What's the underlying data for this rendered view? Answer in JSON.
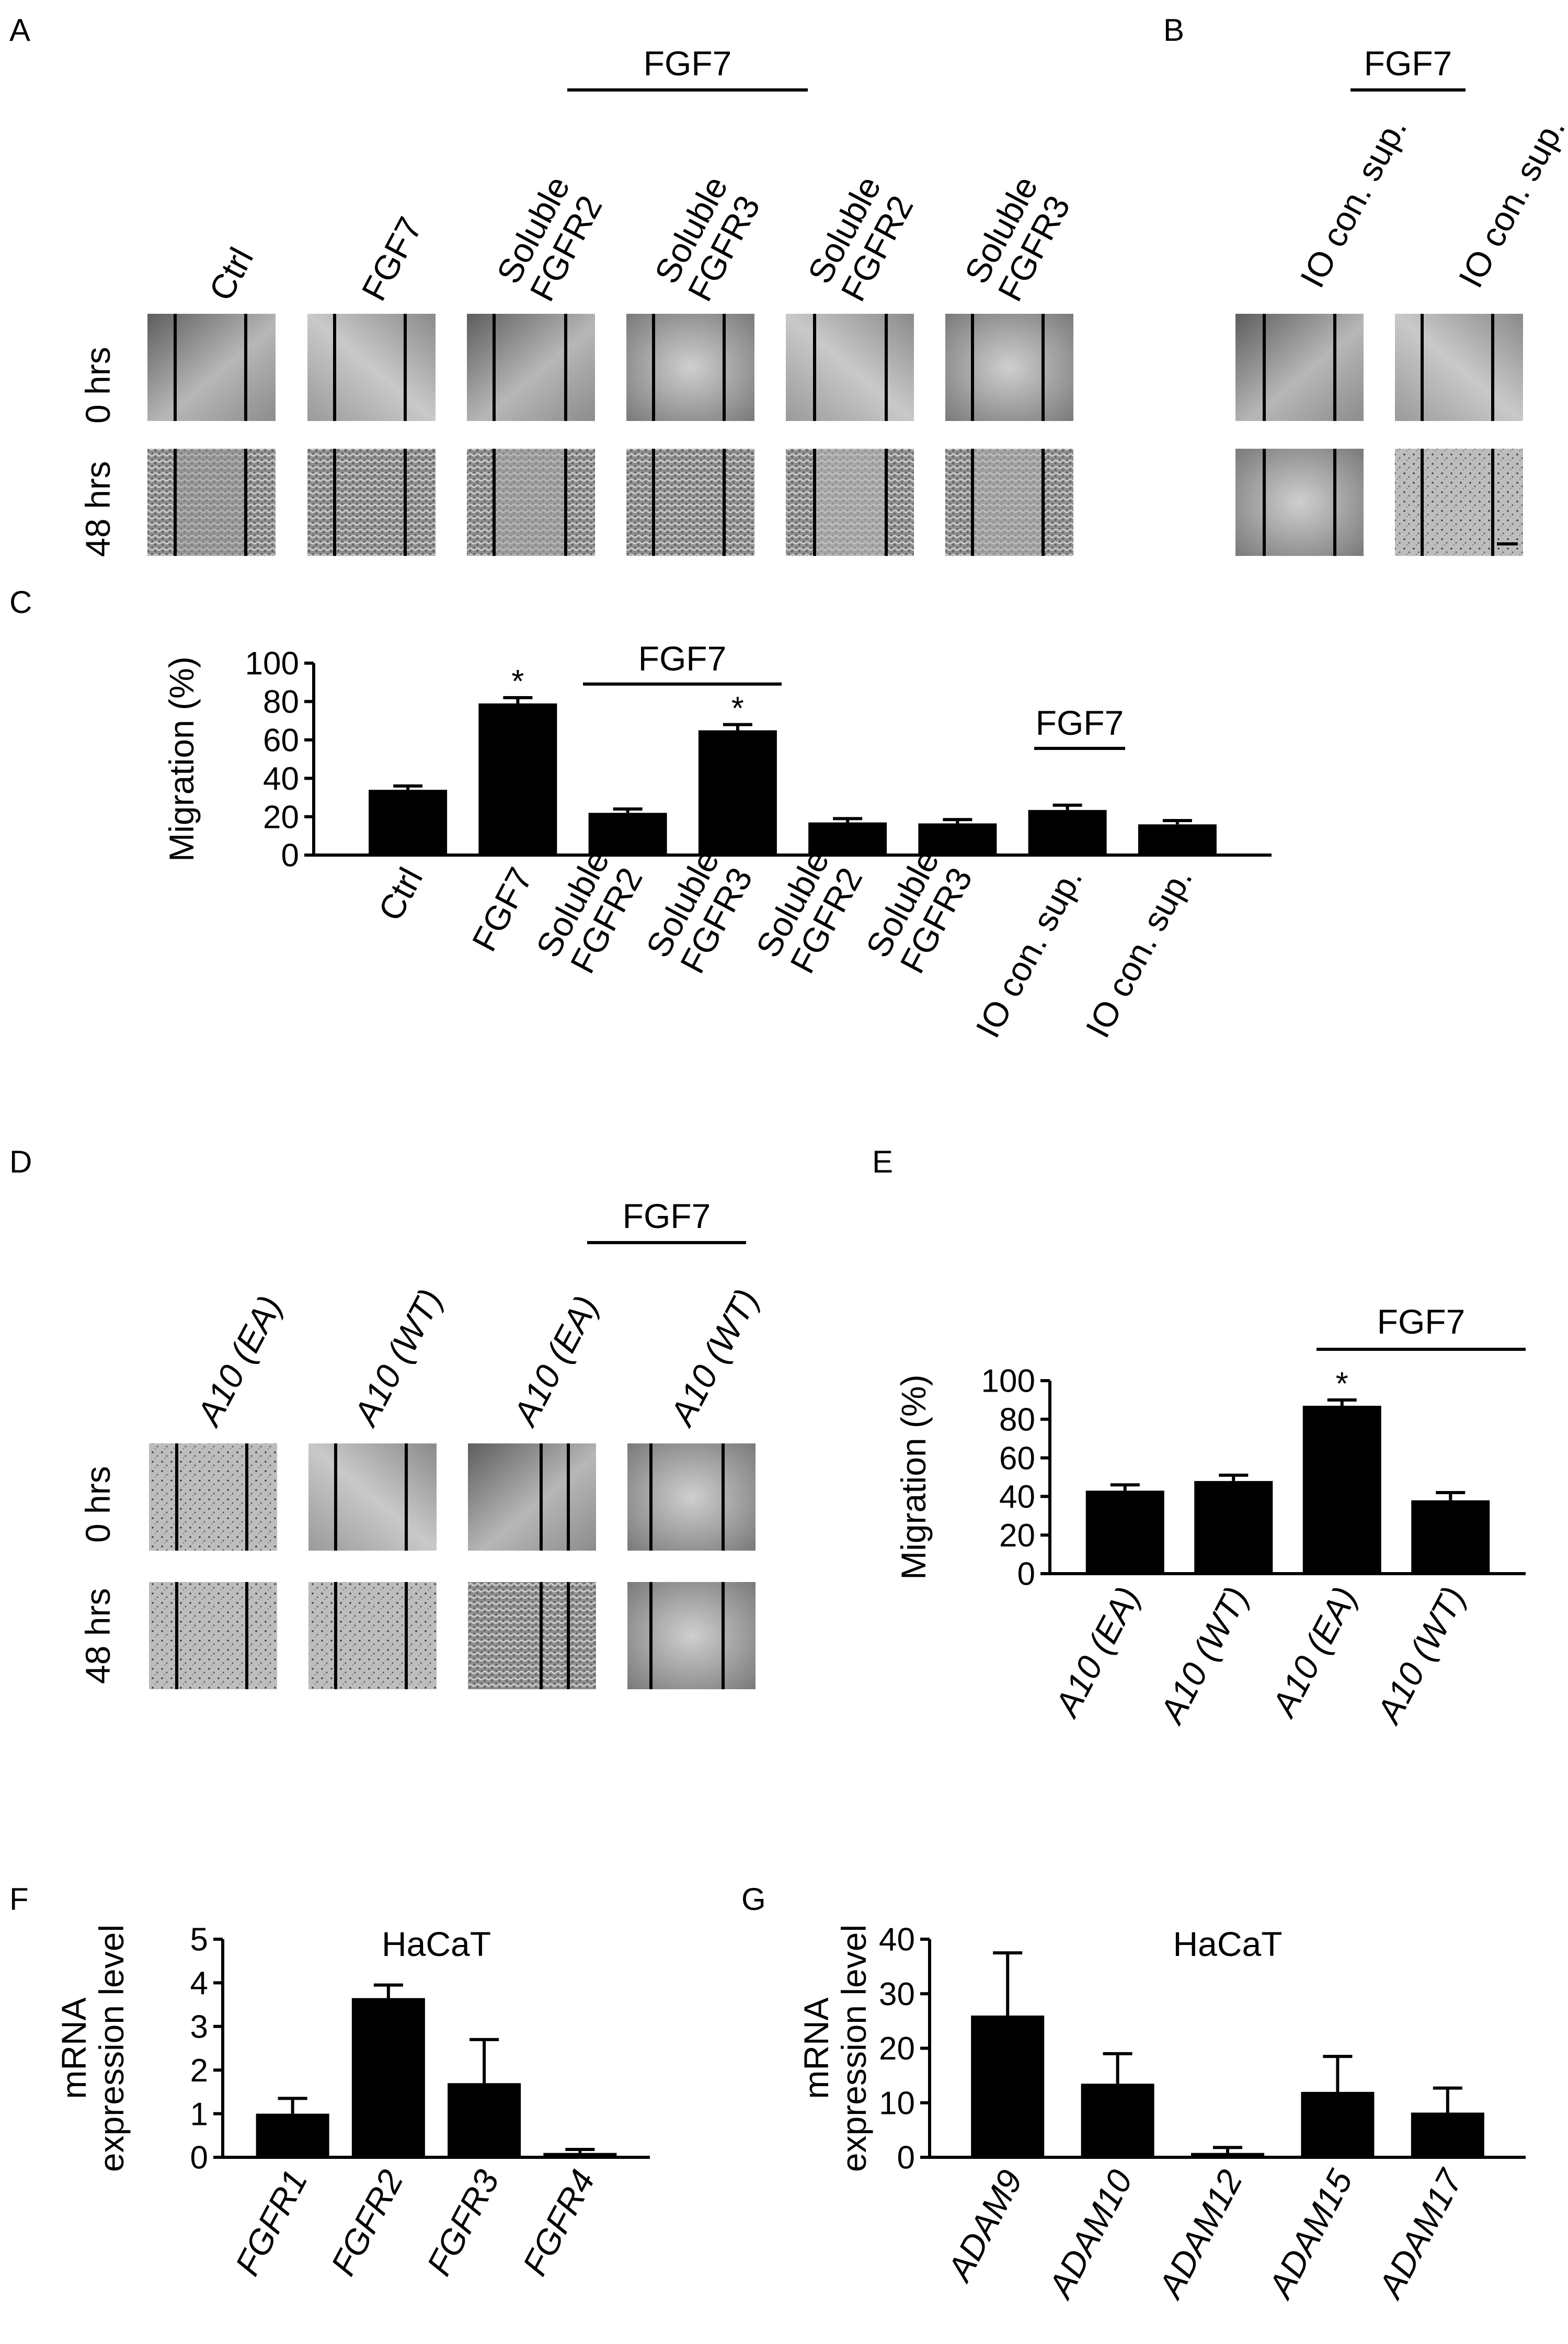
{
  "panels": {
    "A": {
      "letter": "A",
      "group_label": "FGF7",
      "column_labels": [
        [
          "Ctrl"
        ],
        [
          "FGF7"
        ],
        [
          "Soluble",
          "FGFR2"
        ],
        [
          "Soluble",
          "FGFR3"
        ],
        [
          "Soluble",
          "FGFR2"
        ],
        [
          "Soluble",
          "FGFR3"
        ]
      ],
      "row_labels": [
        "0 hrs",
        "48 hrs"
      ]
    },
    "B": {
      "letter": "B",
      "group_label": "FGF7",
      "column_labels": [
        [
          "IO con. sup."
        ],
        [
          "IO con. sup."
        ]
      ]
    },
    "C": {
      "letter": "C",
      "group_labels": [
        "FGF7",
        "FGF7"
      ]
    },
    "D": {
      "letter": "D",
      "group_label": "FGF7",
      "column_labels": [
        [
          "A10 (EA)"
        ],
        [
          "A10 (WT)"
        ],
        [
          "A10 (EA)"
        ],
        [
          "A10 (WT)"
        ]
      ],
      "row_labels": [
        "0 hrs",
        "48 hrs"
      ]
    },
    "E": {
      "letter": "E",
      "group_label": "FGF7"
    },
    "F": {
      "letter": "F"
    },
    "G": {
      "letter": "G"
    }
  },
  "chart_data": [
    {
      "id": "C",
      "type": "bar",
      "title": "",
      "ylabel": "Migration (%)",
      "ylabel_lines": [
        "Migration (%)"
      ],
      "italic_categories": false,
      "categories": [
        [
          "Ctrl"
        ],
        [
          "FGF7"
        ],
        [
          "Soluble",
          "FGFR2"
        ],
        [
          "Soluble",
          "FGFR3"
        ],
        [
          "Soluble",
          "FGFR2"
        ],
        [
          "Soluble",
          "FGFR3"
        ],
        [
          "IO con. sup."
        ],
        [
          "IO con. sup."
        ]
      ],
      "values": [
        34,
        79,
        22,
        65,
        17,
        16.5,
        23.5,
        16
      ],
      "errors": [
        2,
        3,
        2,
        3,
        2,
        2,
        2.5,
        2
      ],
      "significant": [
        "",
        "*",
        "",
        "*",
        "",
        "",
        "",
        ""
      ],
      "ylim": [
        0,
        100
      ],
      "yticks": [
        "0",
        "20",
        "40",
        "60",
        "80",
        "100"
      ]
    },
    {
      "id": "E",
      "type": "bar",
      "title": "",
      "ylabel": "Migration (%)",
      "ylabel_lines": [
        "Migration (%)"
      ],
      "italic_categories": true,
      "categories": [
        [
          "A10 (EA)"
        ],
        [
          "A10 (WT)"
        ],
        [
          "A10 (EA)"
        ],
        [
          "A10 (WT)"
        ]
      ],
      "values": [
        43,
        48,
        87,
        38
      ],
      "errors": [
        3,
        3,
        3,
        4
      ],
      "significant": [
        "",
        "",
        "*",
        ""
      ],
      "ylim": [
        0,
        100
      ],
      "yticks": [
        "0",
        "20",
        "40",
        "60",
        "80",
        "100"
      ]
    },
    {
      "id": "F",
      "type": "bar",
      "title": "HaCaT",
      "ylabel": "mRNA expression level",
      "ylabel_lines": [
        "mRNA",
        "expression level"
      ],
      "italic_categories": true,
      "categories": [
        [
          "FGFR1"
        ],
        [
          "FGFR2"
        ],
        [
          "FGFR3"
        ],
        [
          "FGFR4"
        ]
      ],
      "values": [
        1.0,
        3.65,
        1.7,
        0.1
      ],
      "errors": [
        0.35,
        0.3,
        1.0,
        0.08
      ],
      "significant": [
        "",
        "",
        "",
        ""
      ],
      "ylim": [
        0,
        5
      ],
      "yticks": [
        "0",
        "1",
        "2",
        "3",
        "4",
        "5"
      ]
    },
    {
      "id": "G",
      "type": "bar",
      "title": "HaCaT",
      "ylabel": "mRNA expression level",
      "ylabel_lines": [
        "mRNA",
        "expression level"
      ],
      "italic_categories": true,
      "categories": [
        [
          "ADAM9"
        ],
        [
          "ADAM10"
        ],
        [
          "ADAM12"
        ],
        [
          "ADAM15"
        ],
        [
          "ADAM17"
        ]
      ],
      "values": [
        26,
        13.5,
        0.8,
        12,
        8.2
      ],
      "errors": [
        11.5,
        5.5,
        1.0,
        6.5,
        4.5
      ],
      "significant": [
        "",
        "",
        "",
        "",
        ""
      ],
      "ylim": [
        0,
        40
      ],
      "yticks": [
        "0",
        "10",
        "20",
        "30",
        "40"
      ]
    }
  ]
}
